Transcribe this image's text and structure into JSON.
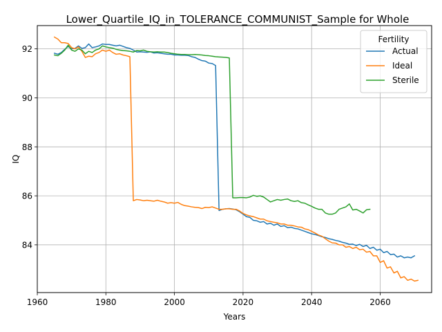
{
  "chart_data": {
    "type": "line",
    "title": "Lower_Quartile_IQ_in_TOLERANCE_COMMUNIST_Sample for Whole",
    "xlabel": "Years",
    "ylabel": "IQ",
    "xlim": [
      1960,
      2075
    ],
    "ylim": [
      82.05,
      92.95
    ],
    "xticks": [
      1960,
      1980,
      2000,
      2020,
      2040,
      2060
    ],
    "yticks": [
      84,
      86,
      88,
      90,
      92
    ],
    "grid": true,
    "legend": {
      "title": "Fertility",
      "position": "top-right"
    },
    "series": [
      {
        "name": "Actual",
        "color": "#1f77b4",
        "points": [
          [
            1965,
            91.82
          ],
          [
            1966,
            91.78
          ],
          [
            1967,
            91.85
          ],
          [
            1968,
            91.98
          ],
          [
            1969,
            92.1
          ],
          [
            1970,
            92.0
          ],
          [
            1971,
            92.02
          ],
          [
            1972,
            92.12
          ],
          [
            1973,
            92.02
          ],
          [
            1974,
            92.05
          ],
          [
            1975,
            92.2
          ],
          [
            1976,
            92.05
          ],
          [
            1977,
            92.08
          ],
          [
            1978,
            92.12
          ],
          [
            1979,
            92.2
          ],
          [
            1980,
            92.18
          ],
          [
            1981,
            92.18
          ],
          [
            1982,
            92.15
          ],
          [
            1983,
            92.12
          ],
          [
            1984,
            92.15
          ],
          [
            1985,
            92.1
          ],
          [
            1986,
            92.05
          ],
          [
            1987,
            92.02
          ],
          [
            1988,
            91.95
          ],
          [
            1989,
            91.87
          ],
          [
            1990,
            91.88
          ],
          [
            1991,
            91.87
          ],
          [
            1992,
            91.86
          ],
          [
            1993,
            91.88
          ],
          [
            1994,
            91.83
          ],
          [
            1995,
            91.84
          ],
          [
            1996,
            91.82
          ],
          [
            1997,
            91.8
          ],
          [
            1998,
            91.78
          ],
          [
            1999,
            91.78
          ],
          [
            2000,
            91.75
          ],
          [
            2001,
            91.75
          ],
          [
            2002,
            91.74
          ],
          [
            2003,
            91.74
          ],
          [
            2004,
            91.73
          ],
          [
            2005,
            91.68
          ],
          [
            2006,
            91.65
          ],
          [
            2007,
            91.58
          ],
          [
            2008,
            91.52
          ],
          [
            2009,
            91.5
          ],
          [
            2010,
            91.42
          ],
          [
            2011,
            91.4
          ],
          [
            2012,
            91.32
          ],
          [
            2013,
            85.4
          ],
          [
            2014,
            85.45
          ],
          [
            2015,
            85.47
          ],
          [
            2016,
            85.48
          ],
          [
            2017,
            85.46
          ],
          [
            2018,
            85.43
          ],
          [
            2019,
            85.35
          ],
          [
            2020,
            85.25
          ],
          [
            2021,
            85.15
          ],
          [
            2022,
            85.12
          ],
          [
            2023,
            85.0
          ],
          [
            2024,
            84.98
          ],
          [
            2025,
            84.92
          ],
          [
            2026,
            84.95
          ],
          [
            2027,
            84.85
          ],
          [
            2028,
            84.88
          ],
          [
            2029,
            84.8
          ],
          [
            2030,
            84.85
          ],
          [
            2031,
            84.75
          ],
          [
            2032,
            84.78
          ],
          [
            2033,
            84.7
          ],
          [
            2034,
            84.72
          ],
          [
            2035,
            84.67
          ],
          [
            2036,
            84.65
          ],
          [
            2037,
            84.6
          ],
          [
            2038,
            84.55
          ],
          [
            2039,
            84.5
          ],
          [
            2040,
            84.45
          ],
          [
            2041,
            84.42
          ],
          [
            2042,
            84.38
          ],
          [
            2043,
            84.33
          ],
          [
            2044,
            84.3
          ],
          [
            2045,
            84.25
          ],
          [
            2046,
            84.22
          ],
          [
            2047,
            84.18
          ],
          [
            2048,
            84.15
          ],
          [
            2049,
            84.1
          ],
          [
            2050,
            84.07
          ],
          [
            2051,
            84.02
          ],
          [
            2052,
            84.03
          ],
          [
            2053,
            83.97
          ],
          [
            2054,
            84.02
          ],
          [
            2055,
            83.93
          ],
          [
            2056,
            83.98
          ],
          [
            2057,
            83.85
          ],
          [
            2058,
            83.9
          ],
          [
            2059,
            83.78
          ],
          [
            2060,
            83.82
          ],
          [
            2061,
            83.68
          ],
          [
            2062,
            83.73
          ],
          [
            2063,
            83.6
          ],
          [
            2064,
            83.62
          ],
          [
            2065,
            83.5
          ],
          [
            2066,
            83.55
          ],
          [
            2067,
            83.47
          ],
          [
            2068,
            83.5
          ],
          [
            2069,
            83.47
          ],
          [
            2070,
            83.55
          ]
        ]
      },
      {
        "name": "Ideal",
        "color": "#ff7f0e",
        "points": [
          [
            1965,
            92.48
          ],
          [
            1966,
            92.4
          ],
          [
            1967,
            92.25
          ],
          [
            1968,
            92.25
          ],
          [
            1969,
            92.22
          ],
          [
            1970,
            92.05
          ],
          [
            1971,
            92.0
          ],
          [
            1972,
            92.08
          ],
          [
            1973,
            91.9
          ],
          [
            1974,
            91.65
          ],
          [
            1975,
            91.7
          ],
          [
            1976,
            91.68
          ],
          [
            1977,
            91.8
          ],
          [
            1978,
            91.85
          ],
          [
            1979,
            91.95
          ],
          [
            1980,
            91.9
          ],
          [
            1981,
            91.95
          ],
          [
            1982,
            91.85
          ],
          [
            1983,
            91.78
          ],
          [
            1984,
            91.8
          ],
          [
            1985,
            91.75
          ],
          [
            1986,
            91.72
          ],
          [
            1987,
            91.68
          ],
          [
            1988,
            85.8
          ],
          [
            1989,
            85.85
          ],
          [
            1990,
            85.83
          ],
          [
            1991,
            85.8
          ],
          [
            1992,
            85.82
          ],
          [
            1993,
            85.8
          ],
          [
            1994,
            85.78
          ],
          [
            1995,
            85.82
          ],
          [
            1996,
            85.78
          ],
          [
            1997,
            85.75
          ],
          [
            1998,
            85.7
          ],
          [
            1999,
            85.72
          ],
          [
            2000,
            85.7
          ],
          [
            2001,
            85.73
          ],
          [
            2002,
            85.65
          ],
          [
            2003,
            85.6
          ],
          [
            2004,
            85.58
          ],
          [
            2005,
            85.55
          ],
          [
            2006,
            85.53
          ],
          [
            2007,
            85.52
          ],
          [
            2008,
            85.48
          ],
          [
            2009,
            85.53
          ],
          [
            2010,
            85.52
          ],
          [
            2011,
            85.55
          ],
          [
            2012,
            85.5
          ],
          [
            2013,
            85.45
          ],
          [
            2014,
            85.45
          ],
          [
            2015,
            85.47
          ],
          [
            2016,
            85.47
          ],
          [
            2017,
            85.45
          ],
          [
            2018,
            85.45
          ],
          [
            2019,
            85.38
          ],
          [
            2020,
            85.28
          ],
          [
            2021,
            85.22
          ],
          [
            2022,
            85.18
          ],
          [
            2023,
            85.15
          ],
          [
            2024,
            85.1
          ],
          [
            2025,
            85.05
          ],
          [
            2026,
            85.05
          ],
          [
            2027,
            84.98
          ],
          [
            2028,
            84.95
          ],
          [
            2029,
            84.92
          ],
          [
            2030,
            84.9
          ],
          [
            2031,
            84.85
          ],
          [
            2032,
            84.85
          ],
          [
            2033,
            84.8
          ],
          [
            2034,
            84.8
          ],
          [
            2035,
            84.77
          ],
          [
            2036,
            84.73
          ],
          [
            2037,
            84.72
          ],
          [
            2038,
            84.65
          ],
          [
            2039,
            84.62
          ],
          [
            2040,
            84.55
          ],
          [
            2041,
            84.48
          ],
          [
            2042,
            84.4
          ],
          [
            2043,
            84.35
          ],
          [
            2044,
            84.25
          ],
          [
            2045,
            84.15
          ],
          [
            2046,
            84.08
          ],
          [
            2047,
            84.07
          ],
          [
            2048,
            84.0
          ],
          [
            2049,
            84.0
          ],
          [
            2050,
            83.9
          ],
          [
            2051,
            83.93
          ],
          [
            2052,
            83.85
          ],
          [
            2053,
            83.9
          ],
          [
            2054,
            83.8
          ],
          [
            2055,
            83.82
          ],
          [
            2056,
            83.7
          ],
          [
            2057,
            83.73
          ],
          [
            2058,
            83.55
          ],
          [
            2059,
            83.55
          ],
          [
            2060,
            83.28
          ],
          [
            2061,
            83.35
          ],
          [
            2062,
            83.05
          ],
          [
            2063,
            83.1
          ],
          [
            2064,
            82.85
          ],
          [
            2065,
            82.92
          ],
          [
            2066,
            82.65
          ],
          [
            2067,
            82.7
          ],
          [
            2068,
            82.55
          ],
          [
            2069,
            82.6
          ],
          [
            2070,
            82.52
          ],
          [
            2071,
            82.55
          ]
        ]
      },
      {
        "name": "Sterile",
        "color": "#2ca02c",
        "points": [
          [
            1965,
            91.75
          ],
          [
            1966,
            91.72
          ],
          [
            1967,
            91.82
          ],
          [
            1968,
            91.95
          ],
          [
            1969,
            92.15
          ],
          [
            1970,
            91.95
          ],
          [
            1971,
            91.9
          ],
          [
            1972,
            92.0
          ],
          [
            1973,
            91.95
          ],
          [
            1974,
            91.8
          ],
          [
            1975,
            91.9
          ],
          [
            1976,
            91.85
          ],
          [
            1977,
            91.95
          ],
          [
            1978,
            92.0
          ],
          [
            1979,
            92.12
          ],
          [
            1980,
            92.08
          ],
          [
            1981,
            92.05
          ],
          [
            1982,
            92.03
          ],
          [
            1983,
            91.98
          ],
          [
            1984,
            91.95
          ],
          [
            1985,
            91.93
          ],
          [
            1986,
            91.92
          ],
          [
            1987,
            91.9
          ],
          [
            1988,
            91.87
          ],
          [
            1989,
            91.93
          ],
          [
            1990,
            91.92
          ],
          [
            1991,
            91.95
          ],
          [
            1992,
            91.9
          ],
          [
            1993,
            91.88
          ],
          [
            1994,
            91.87
          ],
          [
            1995,
            91.88
          ],
          [
            1996,
            91.87
          ],
          [
            1997,
            91.87
          ],
          [
            1998,
            91.85
          ],
          [
            1999,
            91.82
          ],
          [
            2000,
            91.8
          ],
          [
            2001,
            91.78
          ],
          [
            2002,
            91.77
          ],
          [
            2003,
            91.77
          ],
          [
            2004,
            91.76
          ],
          [
            2005,
            91.76
          ],
          [
            2006,
            91.77
          ],
          [
            2007,
            91.76
          ],
          [
            2008,
            91.75
          ],
          [
            2009,
            91.73
          ],
          [
            2010,
            91.72
          ],
          [
            2011,
            91.7
          ],
          [
            2012,
            91.68
          ],
          [
            2013,
            91.67
          ],
          [
            2014,
            91.66
          ],
          [
            2015,
            91.65
          ],
          [
            2016,
            91.63
          ],
          [
            2017,
            85.92
          ],
          [
            2018,
            85.92
          ],
          [
            2019,
            85.93
          ],
          [
            2020,
            85.93
          ],
          [
            2021,
            85.92
          ],
          [
            2022,
            85.95
          ],
          [
            2023,
            86.02
          ],
          [
            2024,
            85.98
          ],
          [
            2025,
            86.0
          ],
          [
            2026,
            85.95
          ],
          [
            2027,
            85.85
          ],
          [
            2028,
            85.75
          ],
          [
            2029,
            85.8
          ],
          [
            2030,
            85.85
          ],
          [
            2031,
            85.82
          ],
          [
            2032,
            85.85
          ],
          [
            2033,
            85.87
          ],
          [
            2034,
            85.8
          ],
          [
            2035,
            85.77
          ],
          [
            2036,
            85.8
          ],
          [
            2037,
            85.72
          ],
          [
            2038,
            85.7
          ],
          [
            2039,
            85.63
          ],
          [
            2040,
            85.57
          ],
          [
            2041,
            85.5
          ],
          [
            2042,
            85.45
          ],
          [
            2043,
            85.45
          ],
          [
            2044,
            85.3
          ],
          [
            2045,
            85.25
          ],
          [
            2046,
            85.25
          ],
          [
            2047,
            85.3
          ],
          [
            2048,
            85.45
          ],
          [
            2049,
            85.5
          ],
          [
            2050,
            85.55
          ],
          [
            2051,
            85.67
          ],
          [
            2052,
            85.42
          ],
          [
            2053,
            85.45
          ],
          [
            2054,
            85.38
          ],
          [
            2055,
            85.3
          ],
          [
            2056,
            85.43
          ],
          [
            2057,
            85.45
          ]
        ]
      }
    ]
  }
}
